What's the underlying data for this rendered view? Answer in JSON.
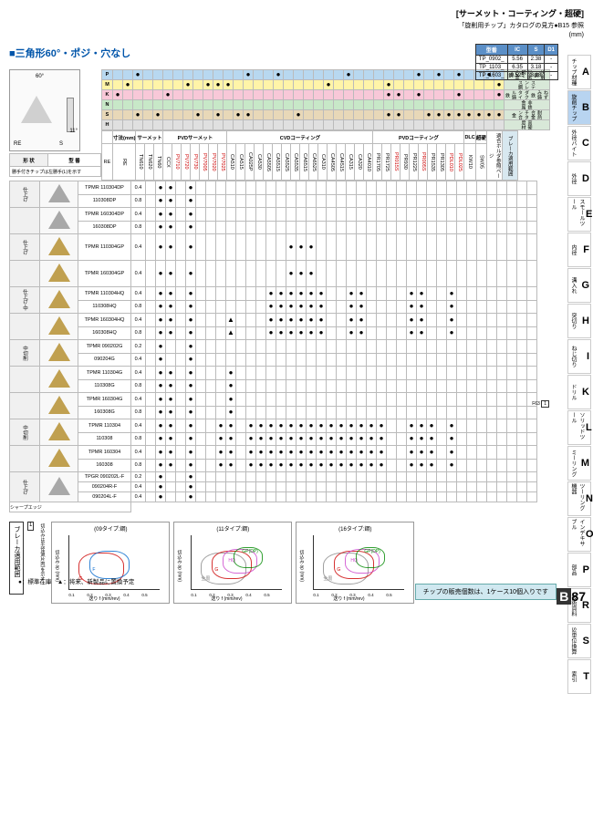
{
  "header": {
    "category": "[サーメット・コーティング・超硬]",
    "guide": "「旋削用チップ」カタログの見方●B15 参照",
    "unit": "(mm)"
  },
  "title": "三角形60°・ポジ・穴なし",
  "spec_table": {
    "headers": [
      "型番",
      "IC",
      "S",
      "D1"
    ],
    "rows": [
      [
        "TP_0902_",
        "5.56",
        "2.38",
        "-"
      ],
      [
        "TP_1103_",
        "6.35",
        "3.18",
        "-"
      ],
      [
        "TP_1603_",
        "9.525",
        "3.18",
        "-"
      ]
    ]
  },
  "side_tabs": [
    {
      "l": "A",
      "t": "チップ材種"
    },
    {
      "l": "B",
      "t": "旋削チップ",
      "active": true
    },
    {
      "l": "C",
      "t": "外径バイト"
    },
    {
      "l": "D",
      "t": "外径"
    },
    {
      "l": "E",
      "t": "スモールツール"
    },
    {
      "l": "F",
      "t": "内径"
    },
    {
      "l": "G",
      "t": "溝入れ"
    },
    {
      "l": "H",
      "t": "突切り"
    },
    {
      "l": "I",
      "t": "ねじ切り"
    },
    {
      "l": "K",
      "t": "ドリル"
    },
    {
      "l": "L",
      "t": "ソリッドツール"
    },
    {
      "l": "M",
      "t": "ミーリング"
    },
    {
      "l": "N",
      "t": "ツーリング機器"
    },
    {
      "l": "O",
      "t": "インデキサブル"
    },
    {
      "l": "P",
      "t": "部品"
    },
    {
      "l": "R",
      "t": "技術資料"
    },
    {
      "l": "S",
      "t": "SI単位換算"
    },
    {
      "l": "T",
      "t": "索引"
    }
  ],
  "diagram": {
    "angle": "60°",
    "re": "RE",
    "s": "S",
    "clearance": "11°"
  },
  "material_rows": [
    {
      "code": "P",
      "cls": "row-P",
      "labels": [
        "快削鋼",
        "炭素鋼・合金鋼"
      ]
    },
    {
      "code": "M",
      "cls": "row-M",
      "labels": [
        "ステンレス鋼"
      ]
    },
    {
      "code": "K",
      "cls": "row-K",
      "labels": [
        "ねずみ鋳鉄",
        "ダクタイル鋳鉄"
      ]
    },
    {
      "code": "N",
      "cls": "row-N",
      "labels": [
        "非鉄金属"
      ]
    },
    {
      "code": "S",
      "cls": "row-S",
      "labels": [
        "耐熱合金",
        "チタン合金"
      ]
    },
    {
      "code": "H",
      "cls": "row-H",
      "labels": [
        "高硬度材"
      ]
    }
  ],
  "col_groups": [
    {
      "name": "寸法(mm)",
      "cols": [
        "RE"
      ],
      "cls": ""
    },
    {
      "name": "サーメット",
      "cols": [
        "TN610",
        "TN620",
        "TN60"
      ],
      "cls": ""
    },
    {
      "name": "PVDサーメット",
      "cols": [
        "CCX",
        "PV710",
        "PV720",
        "PV730",
        "PV7005",
        "PV7020",
        "PV7025"
      ],
      "cls": ""
    },
    {
      "name": "CVDコーティング",
      "cols": [
        "CA510",
        "CA515",
        "CA025P",
        "CA530",
        "CA5505",
        "CA5515",
        "CA5525",
        "CA5535",
        "CA6515",
        "CA6525",
        "CA310",
        "CA4505",
        "CA4515",
        "CA315",
        "CA320",
        "CA4010"
      ],
      "cls": ""
    },
    {
      "name": "PVDコーティング",
      "cols": [
        "PR1705",
        "PR1725",
        "PR015S",
        "PR930",
        "PR1225",
        "PR005S",
        "PR1535",
        "PR1305",
        "PDL010",
        "PDL025"
      ],
      "cls": ""
    },
    {
      "name": "DLC",
      "cols": [
        "KW10"
      ],
      "cls": ""
    },
    {
      "name": "超硬",
      "cols": [
        "SW05"
      ],
      "cls": ""
    }
  ],
  "shape_hdr": "形 状",
  "model_hdr": "型 番",
  "note_left": "勝手付きチップは左勝手(L)を示す",
  "breaker_hdr": "ブレーカ適用範囲",
  "holder_hdr": "適合ホルダ参照ページ",
  "data_rows": [
    {
      "grp": "仕上げ",
      "shape": "gray",
      "models": [
        "TPMR 110304DP",
        "110308DP"
      ],
      "re": [
        "0.4",
        "0.8"
      ],
      "d": {
        "2": 1,
        "3": 1,
        "5": 1
      }
    },
    {
      "grp": "",
      "shape": "gray",
      "models": [
        "TPMR 160304DP",
        "160308DP"
      ],
      "re": [
        "0.4",
        "0.8"
      ],
      "d": {
        "2": 1,
        "3": 1,
        "5": 1
      }
    },
    {
      "grp": "仕上げ",
      "shape": "gold",
      "models": [
        "TPMR 110304GP"
      ],
      "re": [
        "0.4"
      ],
      "d": {
        "2": 1,
        "3": 1,
        "5": 1,
        "15": 1,
        "16": 1,
        "17": 1
      }
    },
    {
      "grp": "",
      "shape": "gold",
      "models": [
        "TPMR 160304GP"
      ],
      "re": [
        "0.4"
      ],
      "d": {
        "2": 1,
        "3": 1,
        "5": 1,
        "15": 1,
        "16": 1,
        "17": 1
      }
    },
    {
      "grp": "仕上げ-中",
      "shape": "gold",
      "models": [
        "TPMR 110304HQ",
        "110308HQ"
      ],
      "re": [
        "0.4",
        "0.8"
      ],
      "d": {
        "2": 1,
        "3": 1,
        "5": 1,
        "13": 1,
        "14": 1,
        "15": 1,
        "16": 1,
        "17": 1,
        "18": 1,
        "21": 1,
        "22": 1,
        "27": 1,
        "28": 1,
        "31": 1
      }
    },
    {
      "grp": "",
      "shape": "gold",
      "models": [
        "TPMR 160304HQ",
        "160308HQ"
      ],
      "re": [
        "0.4",
        "0.8"
      ],
      "d": {
        "2": 1,
        "3": 1,
        "5": 1,
        "9": 2,
        "13": 1,
        "14": 1,
        "15": 1,
        "16": 1,
        "17": 1,
        "18": 1,
        "21": 1,
        "22": 1,
        "27": 1,
        "28": 1,
        "31": 1
      }
    },
    {
      "grp": "中切削",
      "shape": "gold",
      "models": [
        "TPMR 090202G",
        "090204G"
      ],
      "re": [
        "0.2",
        "0.4"
      ],
      "d": {
        "2": 1,
        "5": 1
      }
    },
    {
      "grp": "",
      "shape": "gold",
      "models": [
        "TPMR 110304G",
        "110308G"
      ],
      "re": [
        "0.4",
        "0.8"
      ],
      "d": {
        "2": 1,
        "3": 1,
        "5": 1,
        "9": 1
      }
    },
    {
      "grp": "",
      "shape": "gold",
      "models": [
        "TPMR 160304G",
        "160308G"
      ],
      "re": [
        "0.4",
        "0.8"
      ],
      "d": {
        "2": 1,
        "3": 1,
        "5": 1,
        "9": 1
      }
    },
    {
      "grp": "中切削",
      "shape": "gold",
      "models": [
        "TPMR 110304",
        "110308"
      ],
      "re": [
        "0.4",
        "0.8"
      ],
      "d": {
        "2": 1,
        "3": 1,
        "5": 1,
        "8": 1,
        "9": 1,
        "11": 1,
        "12": 1,
        "13": 1,
        "14": 1,
        "15": 1,
        "16": 1,
        "17": 1,
        "18": 1,
        "19": 1,
        "20": 1,
        "21": 1,
        "22": 1,
        "23": 1,
        "24": 1,
        "27": 1,
        "28": 1,
        "29": 1,
        "31": 1
      }
    },
    {
      "grp": "",
      "shape": "gold",
      "models": [
        "TPMR 160304",
        "160308"
      ],
      "re": [
        "0.4",
        "0.8"
      ],
      "d": {
        "2": 1,
        "3": 1,
        "5": 1,
        "8": 1,
        "9": 1,
        "11": 1,
        "12": 1,
        "13": 1,
        "14": 1,
        "15": 1,
        "16": 1,
        "17": 1,
        "18": 1,
        "19": 1,
        "20": 1,
        "21": 1,
        "22": 1,
        "23": 1,
        "24": 1,
        "27": 1,
        "28": 1,
        "29": 1,
        "31": 1
      }
    },
    {
      "grp": "仕上げ",
      "shape": "gray",
      "models": [
        "TPGR 090202L-F",
        "090204R-F",
        "090204L-F"
      ],
      "re": [
        "0.2",
        "0.4",
        "0.4"
      ],
      "d": {
        "2": 1,
        "5": 1
      }
    }
  ],
  "sharp_edge": "シャープエッジ",
  "f63": "F63",
  "f63_box": "1",
  "charts": {
    "label": "ブレーカ適用範囲",
    "note": "切込みは半径値(片肉)を示す",
    "note_box": "1",
    "items": [
      {
        "title": "(09タイプ:鋼)",
        "xlabel": "送り f (mm/rev)",
        "ylabel": "切込み ap (mm)",
        "xticks": [
          "0.1",
          "0.2",
          "0.3",
          "0.4",
          "0.5"
        ],
        "ymax": "4",
        "regions": [
          {
            "n": "G",
            "c": "#c00"
          },
          {
            "n": "F",
            "c": "#06c"
          }
        ]
      },
      {
        "title": "(11タイプ:鋼)",
        "xlabel": "送り f (mm/rev)",
        "ylabel": "切込み ap (mm)",
        "xticks": [
          "0.1",
          "0.2",
          "0.3",
          "0.4",
          "0.5"
        ],
        "ymax": "4",
        "regions": [
          {
            "n": "全周",
            "c": "#888"
          },
          {
            "n": "G",
            "c": "#c00"
          },
          {
            "n": "HQ",
            "c": "#c4c"
          },
          {
            "n": "GP(DP)",
            "c": "#080"
          }
        ]
      },
      {
        "title": "(16タイプ:鋼)",
        "xlabel": "送り f (mm/rev)",
        "ylabel": "切込み ap (mm)",
        "xticks": [
          "0.1",
          "0.2",
          "0.3",
          "0.4",
          "0.5"
        ],
        "ymax": "4",
        "regions": [
          {
            "n": "全周",
            "c": "#888"
          },
          {
            "n": "G",
            "c": "#c00"
          },
          {
            "n": "HQ",
            "c": "#c4c"
          },
          {
            "n": "GP(DP)",
            "c": "#080"
          }
        ]
      }
    ]
  },
  "legend": "●：標準在庫　▲：将来、新製品に置換予定",
  "footer": "チップの販売個数は、1ケース10個入りです",
  "page_num": {
    "prefix": "B",
    "num": "87"
  }
}
